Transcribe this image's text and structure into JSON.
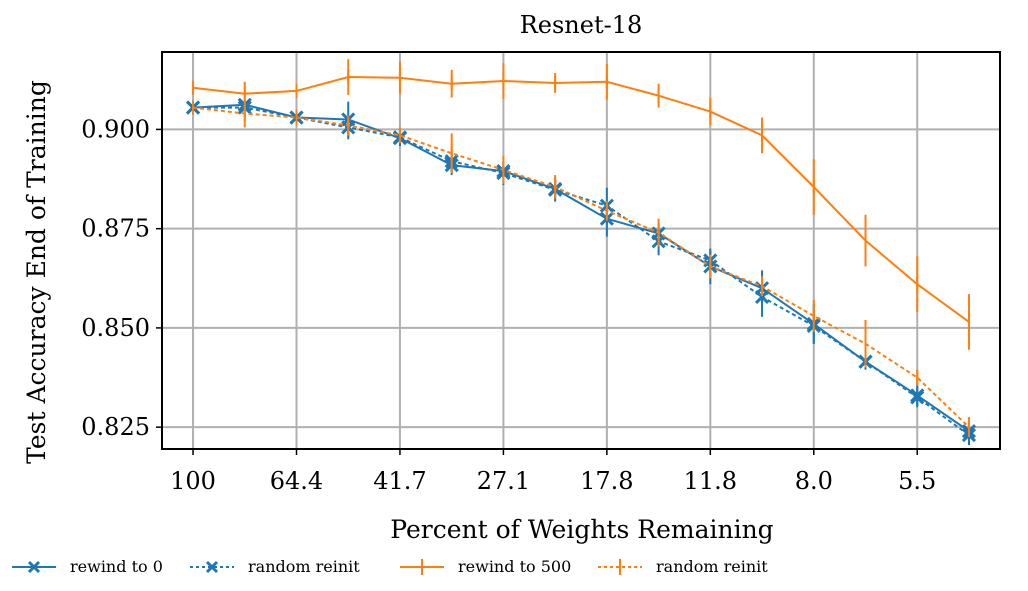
{
  "chart_data": {
    "type": "line",
    "title": "Resnet-18",
    "xlabel": "Percent of Weights Remaining",
    "ylabel": "Test Accuracy End of Training",
    "x_tick_labels": [
      "100",
      "64.4",
      "41.7",
      "27.1",
      "17.8",
      "11.8",
      "8.0",
      "5.5"
    ],
    "x_tick_index": [
      0,
      2,
      4,
      6,
      8,
      10,
      12,
      14
    ],
    "x_index": [
      0,
      1,
      2,
      3,
      4,
      5,
      6,
      7,
      8,
      9,
      10,
      11,
      12,
      13,
      14,
      15
    ],
    "xlim": [
      -0.6,
      15.6
    ],
    "y_ticks": [
      0.825,
      0.85,
      0.875,
      0.9
    ],
    "y_tick_labels": [
      "0.825",
      "0.850",
      "0.875",
      "0.900"
    ],
    "ylim": [
      0.8195,
      0.9195
    ],
    "grid": true,
    "legend_position": "below",
    "series": [
      {
        "name": "rewind to 0",
        "color": "#1f77b4",
        "linestyle": "solid",
        "marker": "x",
        "values": [
          0.9055,
          0.9062,
          0.903,
          0.9025,
          0.8978,
          0.891,
          0.8895,
          0.885,
          0.8775,
          0.8738,
          0.8655,
          0.86,
          0.851,
          0.8415,
          0.833,
          0.824
        ],
        "errors": [
          0.001,
          0.001,
          0.0015,
          0.0045,
          0.002,
          0.0025,
          0.002,
          0.0025,
          0.0045,
          0.0025,
          0.0045,
          0.0045,
          0.005,
          0.002,
          0.0025,
          0.0035
        ]
      },
      {
        "name": "random reinit",
        "color": "#1f77b4",
        "linestyle": "dotted",
        "marker": "x",
        "values": [
          0.9055,
          0.9055,
          0.903,
          0.9005,
          0.898,
          0.892,
          0.889,
          0.8848,
          0.8808,
          0.8718,
          0.867,
          0.8578,
          0.8505,
          0.8415,
          0.8325,
          0.823
        ],
        "errors": [
          0.001,
          0.0015,
          0.0015,
          0.003,
          0.002,
          0.0025,
          0.003,
          0.003,
          0.0045,
          0.0035,
          0.0025,
          0.005,
          0.0045,
          0.002,
          0.0025,
          0.0025
        ]
      },
      {
        "name": "rewind to 500",
        "color": "#ff7f0e",
        "linestyle": "solid",
        "marker": "|",
        "values": [
          0.9105,
          0.909,
          0.9097,
          0.9132,
          0.913,
          0.9115,
          0.9122,
          0.9117,
          0.912,
          0.9085,
          0.9045,
          0.8985,
          0.8855,
          0.872,
          0.861,
          0.8515
        ],
        "errors": [
          0.001,
          0.003,
          0.001,
          0.0045,
          0.004,
          0.0035,
          0.0045,
          0.0025,
          0.0045,
          0.003,
          0.0035,
          0.0045,
          0.007,
          0.0065,
          0.007,
          0.007
        ]
      },
      {
        "name": "random reinit",
        "color": "#ff7f0e",
        "linestyle": "dotted",
        "marker": "|",
        "values": [
          0.9055,
          0.904,
          0.903,
          0.901,
          0.8985,
          0.894,
          0.8898,
          0.8855,
          0.8795,
          0.874,
          0.8655,
          0.8605,
          0.853,
          0.846,
          0.8375,
          0.825
        ],
        "errors": [
          0.001,
          0.0035,
          0.002,
          0.0025,
          0.002,
          0.005,
          0.0035,
          0.003,
          0.0025,
          0.0035,
          0.003,
          0.0025,
          0.004,
          0.006,
          0.002,
          0.0025
        ]
      }
    ]
  }
}
